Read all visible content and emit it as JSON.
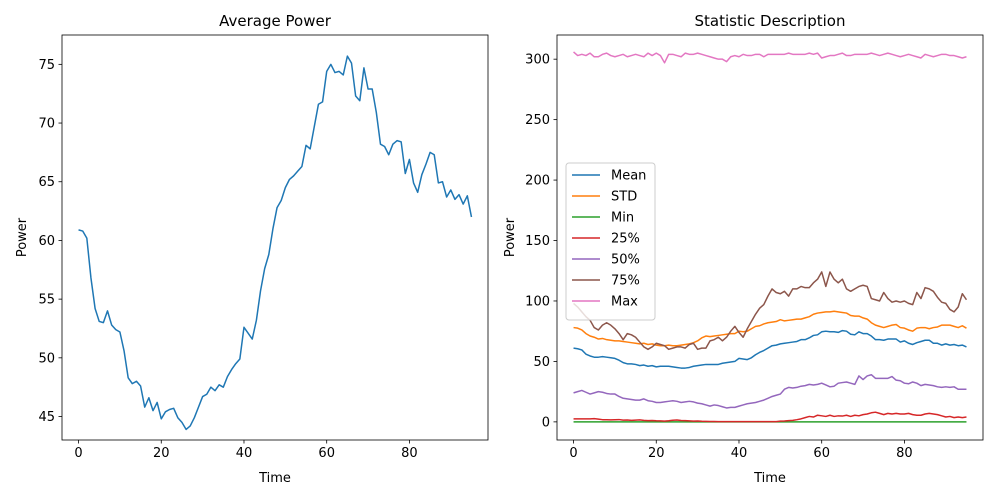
{
  "chart_data": [
    {
      "type": "line",
      "title": "Average Power",
      "xlabel": "Time",
      "ylabel": "Power",
      "xlim": [
        -4,
        99
      ],
      "ylim": [
        43,
        77.5
      ],
      "xticks": [
        0,
        20,
        40,
        60,
        80
      ],
      "yticks": [
        45,
        50,
        55,
        60,
        65,
        70,
        75
      ],
      "grid": false,
      "series": [
        {
          "color": "#1f77b4",
          "x": [
            0,
            1,
            2,
            3,
            4,
            5,
            6,
            7,
            8,
            9,
            10,
            11,
            12,
            13,
            14,
            15,
            16,
            17,
            18,
            19,
            20,
            21,
            22,
            23,
            24,
            25,
            26,
            27,
            28,
            29,
            30,
            31,
            32,
            33,
            34,
            35,
            36,
            37,
            38,
            39,
            40,
            41,
            42,
            43,
            44,
            45,
            46,
            47,
            48,
            49,
            50,
            51,
            52,
            53,
            54,
            55,
            56,
            57,
            58,
            59,
            60,
            61,
            62,
            63,
            64,
            65,
            66,
            67,
            68,
            69,
            70,
            71,
            72,
            73,
            74,
            75,
            76,
            77,
            78,
            79,
            80,
            81,
            82,
            83,
            84,
            85,
            86,
            87,
            88,
            89,
            90,
            91,
            92,
            93,
            94,
            95
          ],
          "y": [
            60.9,
            60.8,
            60.2,
            56.8,
            54.2,
            53.1,
            53.0,
            54.0,
            52.8,
            52.4,
            52.2,
            50.6,
            48.3,
            47.8,
            48.0,
            47.6,
            45.8,
            46.6,
            45.5,
            46.2,
            44.8,
            45.4,
            45.6,
            45.7,
            44.9,
            44.5,
            43.9,
            44.2,
            44.9,
            45.8,
            46.7,
            46.9,
            47.5,
            47.2,
            47.7,
            47.5,
            48.4,
            49.0,
            49.5,
            49.9,
            52.6,
            52.1,
            51.6,
            53.2,
            55.7,
            57.6,
            58.8,
            61.0,
            62.8,
            63.4,
            64.5,
            65.2,
            65.5,
            65.9,
            66.3,
            68.1,
            67.8,
            69.7,
            71.6,
            71.8,
            74.4,
            75.0,
            74.3,
            74.4,
            74.1,
            75.7,
            75.1,
            72.3,
            71.9,
            74.7,
            72.9,
            72.9,
            70.9,
            68.2,
            68.0,
            67.3,
            68.2,
            68.5,
            68.4,
            65.7,
            66.9,
            64.9,
            64.1,
            65.6,
            66.5,
            67.5,
            67.3,
            64.9,
            65.0,
            63.7,
            64.3,
            63.5,
            63.9,
            63.1,
            63.8,
            62.0
          ]
        }
      ]
    },
    {
      "type": "line",
      "title": "Statistic Description",
      "xlabel": "Time",
      "ylabel": "Power",
      "xlim": [
        -4,
        99
      ],
      "ylim": [
        -15,
        320
      ],
      "xticks": [
        0,
        20,
        40,
        60,
        80
      ],
      "yticks": [
        0,
        50,
        100,
        150,
        200,
        250,
        300
      ],
      "grid": false,
      "legend": "center-left",
      "x": [
        0,
        1,
        2,
        3,
        4,
        5,
        6,
        7,
        8,
        9,
        10,
        11,
        12,
        13,
        14,
        15,
        16,
        17,
        18,
        19,
        20,
        21,
        22,
        23,
        24,
        25,
        26,
        27,
        28,
        29,
        30,
        31,
        32,
        33,
        34,
        35,
        36,
        37,
        38,
        39,
        40,
        41,
        42,
        43,
        44,
        45,
        46,
        47,
        48,
        49,
        50,
        51,
        52,
        53,
        54,
        55,
        56,
        57,
        58,
        59,
        60,
        61,
        62,
        63,
        64,
        65,
        66,
        67,
        68,
        69,
        70,
        71,
        72,
        73,
        74,
        75,
        76,
        77,
        78,
        79,
        80,
        81,
        82,
        83,
        84,
        85,
        86,
        87,
        88,
        89,
        90,
        91,
        92,
        93,
        94,
        95
      ],
      "series": [
        {
          "name": "Mean",
          "color": "#1f77b4",
          "values": [
            61,
            60.5,
            59.5,
            56,
            54.5,
            53.5,
            53.5,
            54,
            53.5,
            53,
            52.5,
            51,
            49,
            48,
            48,
            47.5,
            46.5,
            47,
            46,
            46.5,
            45.5,
            46,
            46,
            46,
            45.5,
            45,
            44.5,
            44.5,
            45,
            46,
            46.5,
            47,
            47.5,
            47.5,
            47.5,
            47.5,
            48.5,
            49,
            49.5,
            50,
            52.5,
            52,
            51.5,
            53,
            55.5,
            57.5,
            59,
            61,
            63,
            63.5,
            64.5,
            65,
            65.5,
            66,
            66.5,
            68,
            68,
            69.5,
            71.5,
            72,
            74.5,
            75,
            74.5,
            74.5,
            74,
            75.5,
            75,
            72.5,
            72,
            74.5,
            73,
            73,
            71,
            68,
            68,
            67.5,
            68.5,
            68.5,
            68.5,
            66,
            67,
            65,
            64,
            65.5,
            66.5,
            67.5,
            67.5,
            65,
            65,
            63.5,
            64.5,
            63.5,
            64,
            63,
            63.5,
            62
          ]
        },
        {
          "name": "STD",
          "color": "#ff7f0e",
          "values": [
            78,
            77.5,
            76,
            73,
            71,
            70,
            68.5,
            69,
            68,
            67.5,
            67,
            67,
            66.5,
            66,
            65.5,
            65,
            64.5,
            65,
            64,
            64.5,
            63.5,
            63,
            63,
            63.5,
            63,
            63,
            63.5,
            64,
            64.5,
            65.5,
            67,
            69.5,
            71,
            70.5,
            71,
            71.5,
            72,
            72.5,
            73,
            73,
            75,
            74.5,
            75,
            77,
            79,
            79.5,
            81,
            82,
            82.5,
            83,
            84.5,
            83.5,
            84,
            84.5,
            85,
            85,
            86,
            87,
            89,
            90,
            90.5,
            91,
            91,
            91.5,
            91,
            90.5,
            90,
            88,
            87.5,
            87.5,
            86,
            85,
            82,
            80,
            79,
            78,
            79,
            80,
            80.5,
            78,
            77.5,
            76,
            75,
            77.5,
            78,
            78,
            77,
            78,
            78.5,
            80,
            80,
            80,
            79,
            78,
            79.5,
            77.5
          ]
        },
        {
          "name": "Min",
          "color": "#2ca02c",
          "values": [
            0,
            0,
            0,
            0,
            0,
            0,
            0,
            0,
            0,
            0,
            0,
            0,
            0,
            0,
            0,
            0,
            0,
            0,
            0,
            0,
            0,
            0,
            0,
            0,
            0,
            0,
            0,
            0,
            0,
            0,
            0,
            0,
            0,
            0,
            0,
            0,
            0,
            0,
            0,
            0,
            0,
            0,
            0,
            0,
            0,
            0,
            0,
            0,
            0,
            0,
            0,
            0,
            0,
            0,
            0,
            0,
            0,
            0,
            0,
            0,
            0,
            0,
            0,
            0,
            0,
            0,
            0,
            0,
            0,
            0,
            0,
            0,
            0,
            0,
            0,
            0,
            0,
            0,
            0,
            0,
            0,
            0,
            0,
            0,
            0,
            0,
            0,
            0,
            0,
            0,
            0,
            0,
            0,
            0,
            0,
            0
          ]
        },
        {
          "name": "25%",
          "color": "#d62728",
          "values": [
            2.5,
            2.5,
            2.5,
            2.5,
            2.5,
            2.7,
            2.3,
            1.8,
            1.8,
            1.6,
            1.8,
            1.9,
            1.4,
            1.5,
            1.2,
            1.4,
            1.6,
            1.2,
            1.0,
            1.1,
            0.9,
            0.8,
            0.6,
            0.9,
            1.3,
            1.5,
            1.1,
            1.0,
            0.8,
            0.6,
            0.7,
            0.5,
            0.4,
            0.3,
            0.3,
            0.2,
            0.2,
            0.2,
            0.2,
            0.2,
            0.2,
            0.2,
            0.2,
            0.2,
            0.2,
            0.2,
            0.2,
            0.2,
            0.2,
            0.2,
            0.6,
            0.7,
            1.0,
            1.2,
            1.8,
            2.5,
            3.5,
            4.5,
            4.0,
            5.5,
            5.0,
            4.5,
            5.5,
            4.5,
            5.0,
            4.8,
            5.5,
            4.5,
            5.5,
            5.0,
            6.0,
            6.5,
            7.5,
            8.0,
            7.0,
            6.0,
            7.0,
            6.5,
            7.0,
            6.5,
            6.5,
            7.0,
            6.0,
            5.5,
            5.5,
            6.5,
            7.0,
            6.5,
            6.0,
            5.0,
            4.0,
            4.5,
            3.5,
            4.0,
            3.5,
            4.0
          ]
        },
        {
          "name": "50%",
          "color": "#9467bd",
          "values": [
            24,
            25,
            26,
            24.5,
            23,
            24,
            25,
            24.5,
            23.5,
            23,
            23,
            21,
            19.5,
            19,
            18.5,
            18,
            18,
            19,
            17.5,
            17,
            16,
            16,
            16.5,
            17,
            17.5,
            17,
            16,
            16.5,
            17,
            16.5,
            15.5,
            15,
            14,
            13,
            14,
            13.5,
            12.5,
            11.5,
            12,
            12,
            13,
            14,
            15,
            15.5,
            16,
            17,
            18,
            19.5,
            21,
            22,
            23,
            27,
            28.5,
            28,
            28.5,
            29.5,
            30,
            31,
            30.5,
            31,
            32,
            30.5,
            29,
            29.5,
            32,
            32.5,
            33,
            32,
            31,
            38,
            35,
            38,
            39,
            36,
            36,
            36,
            36,
            37.5,
            34.5,
            34,
            32,
            31.5,
            33,
            32,
            30,
            31,
            30.5,
            30,
            29,
            28.5,
            29,
            28.5,
            29,
            27,
            27,
            27
          ]
        },
        {
          "name": "75%",
          "color": "#8c564b",
          "values": [
            98,
            95,
            91,
            87,
            84,
            78,
            76,
            80,
            82,
            80,
            77,
            73,
            68,
            73,
            72,
            70,
            66,
            62,
            60,
            62,
            65,
            64,
            63,
            60,
            61,
            62,
            62,
            61,
            64,
            65,
            60,
            61,
            61,
            67,
            68,
            70,
            67,
            70,
            75,
            79,
            74,
            70,
            77,
            83,
            89,
            94,
            97,
            104,
            110,
            107,
            106,
            108,
            104,
            110,
            110,
            112,
            111,
            111,
            115,
            118,
            124,
            112,
            124,
            118,
            115,
            118,
            110,
            108,
            110,
            112,
            113,
            112,
            102,
            101,
            100,
            107,
            102,
            99,
            100,
            99,
            100,
            98,
            97,
            107,
            102,
            111,
            110,
            108,
            103,
            99,
            98,
            93,
            91,
            95,
            106,
            101
          ]
        },
        {
          "name": "Max",
          "color": "#e377c2",
          "values": [
            306,
            303,
            304,
            303,
            305,
            302,
            302,
            304,
            305,
            303,
            302,
            303,
            304,
            302,
            303,
            304,
            303,
            302,
            305,
            303,
            305,
            303,
            297,
            304,
            304,
            303,
            302,
            305,
            304,
            304,
            305,
            304,
            303,
            302,
            301,
            300,
            300,
            298,
            302,
            303,
            302,
            304,
            303,
            303,
            304,
            304,
            302,
            304,
            304,
            304,
            304,
            304,
            305,
            304,
            304,
            304,
            304,
            305,
            304,
            305,
            301,
            302,
            303,
            303,
            304,
            305,
            303,
            303,
            304,
            304,
            304,
            304,
            305,
            304,
            303,
            304,
            305,
            304,
            303,
            302,
            303,
            304,
            303,
            302,
            301,
            304,
            303,
            302,
            303,
            304,
            304,
            303,
            303,
            302,
            301,
            302
          ]
        }
      ]
    }
  ]
}
